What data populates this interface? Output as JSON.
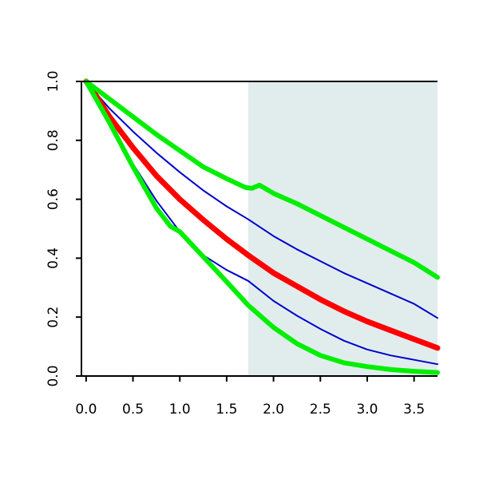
{
  "chart_data": {
    "type": "line",
    "title": "",
    "xlabel": "",
    "ylabel": "",
    "xlim": [
      -0.05,
      3.75
    ],
    "ylim": [
      0,
      1
    ],
    "grid": false,
    "shaded_region": {
      "x_from": 1.73,
      "x_to": 3.75,
      "color": "#e1eded"
    },
    "xticks": [
      0.0,
      0.5,
      1.0,
      1.5,
      2.0,
      2.5,
      3.0,
      3.5
    ],
    "xtick_labels": [
      "0.0",
      "0.5",
      "1.0",
      "1.5",
      "2.0",
      "2.5",
      "3.0",
      "3.5"
    ],
    "yticks": [
      0.0,
      0.2,
      0.4,
      0.6,
      0.8,
      1.0
    ],
    "ytick_labels": [
      "0.0",
      "0.2",
      "0.4",
      "0.6",
      "0.8",
      "1.0"
    ],
    "series": [
      {
        "color": "#0000cc",
        "width": 2,
        "x": [
          0,
          0.1,
          0.25,
          0.5,
          0.75,
          1.0,
          1.25,
          1.5,
          1.73,
          2.0,
          2.25,
          2.5,
          2.75,
          3.0,
          3.25,
          3.5,
          3.75
        ],
        "y": [
          1.0,
          0.962,
          0.908,
          0.83,
          0.758,
          0.692,
          0.63,
          0.576,
          0.532,
          0.475,
          0.43,
          0.39,
          0.35,
          0.315,
          0.28,
          0.245,
          0.197
        ]
      },
      {
        "color": "#0000cc",
        "width": 2,
        "x": [
          0,
          0.1,
          0.25,
          0.5,
          0.75,
          1.0,
          1.25,
          1.5,
          1.73,
          2.0,
          2.25,
          2.5,
          2.75,
          3.0,
          3.25,
          3.5,
          3.75
        ],
        "y": [
          1.0,
          0.945,
          0.86,
          0.72,
          0.595,
          0.49,
          0.41,
          0.36,
          0.323,
          0.255,
          0.205,
          0.16,
          0.12,
          0.09,
          0.07,
          0.055,
          0.04
        ]
      },
      {
        "color": "#ff0000",
        "width": 7,
        "x": [
          0,
          0.1,
          0.25,
          0.5,
          0.75,
          1.0,
          1.25,
          1.5,
          1.73,
          2.0,
          2.25,
          2.5,
          2.75,
          3.0,
          3.25,
          3.5,
          3.75
        ],
        "y": [
          1.0,
          0.955,
          0.88,
          0.775,
          0.68,
          0.6,
          0.53,
          0.465,
          0.41,
          0.35,
          0.305,
          0.26,
          0.22,
          0.185,
          0.155,
          0.125,
          0.095
        ]
      },
      {
        "color": "#00ee00",
        "width": 6,
        "x": [
          0,
          0.25,
          0.5,
          0.75,
          1.0,
          1.25,
          1.5,
          1.7,
          1.77,
          1.85,
          2.0,
          2.25,
          2.5,
          2.75,
          3.0,
          3.25,
          3.5,
          3.75
        ],
        "y": [
          1.0,
          0.94,
          0.88,
          0.82,
          0.765,
          0.71,
          0.67,
          0.64,
          0.637,
          0.648,
          0.62,
          0.585,
          0.545,
          0.505,
          0.465,
          0.425,
          0.385,
          0.335
        ]
      },
      {
        "color": "#00ee00",
        "width": 6,
        "x": [
          0,
          0.25,
          0.5,
          0.75,
          0.9,
          1.0,
          1.25,
          1.5,
          1.73,
          2.0,
          2.25,
          2.5,
          2.75,
          3.0,
          3.25,
          3.5,
          3.75
        ],
        "y": [
          1.0,
          0.86,
          0.71,
          0.57,
          0.508,
          0.49,
          0.405,
          0.32,
          0.24,
          0.165,
          0.11,
          0.07,
          0.045,
          0.032,
          0.022,
          0.016,
          0.012
        ]
      }
    ]
  }
}
